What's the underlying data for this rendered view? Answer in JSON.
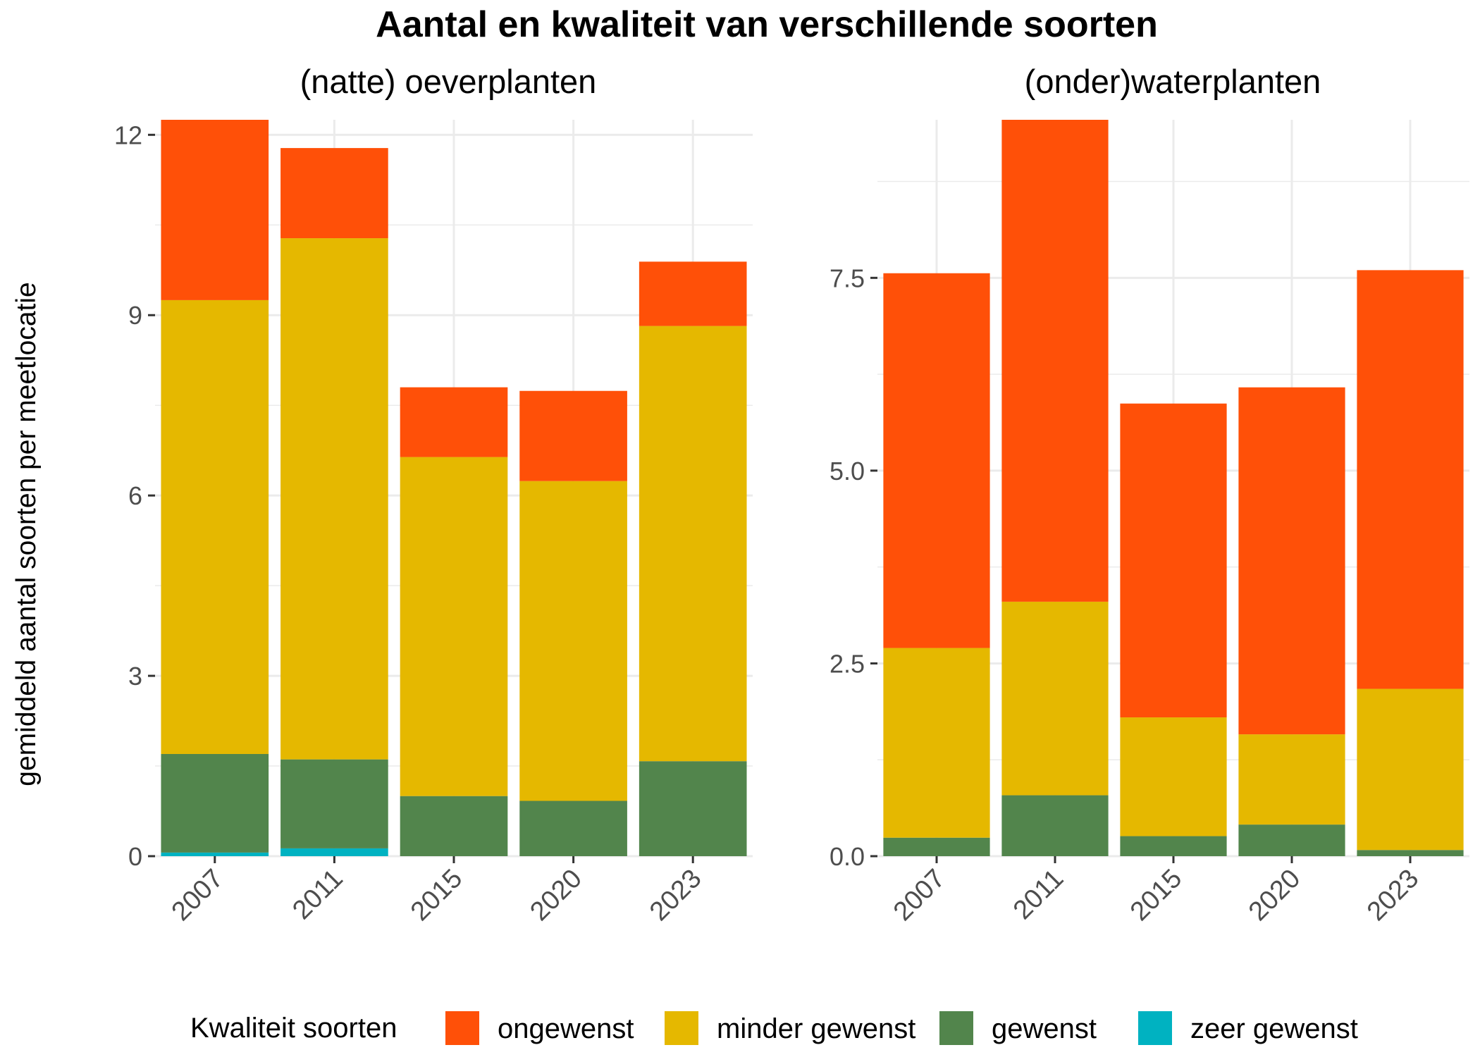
{
  "title": "Aantal en kwaliteit van verschillende soorten",
  "ylabel": "gemiddeld aantal soorten per meetlocatie",
  "legend": {
    "title": "Kwaliteit soorten",
    "placement": "bottom"
  },
  "colors": {
    "ongewenst": "#FF5008",
    "minder gewenst": "#E5B800",
    "gewenst": "#52854C",
    "zeer gewenst": "#00B2C1",
    "grid": "#EBEBEB"
  },
  "chart_data": [
    {
      "type": "bar",
      "stacked": true,
      "title": "(natte) oeverplanten",
      "categories": [
        "2007",
        "2011",
        "2015",
        "2020",
        "2023"
      ],
      "ylim": [
        0,
        12.25
      ],
      "yticks": [
        0,
        3,
        6,
        9,
        12
      ],
      "ytick_labels": [
        "0",
        "3",
        "6",
        "9",
        "12"
      ],
      "grid": true,
      "series": [
        {
          "name": "zeer gewenst",
          "values": [
            0.06,
            0.13,
            0.0,
            0.0,
            0.0
          ]
        },
        {
          "name": "gewenst",
          "values": [
            1.64,
            1.48,
            1.0,
            0.92,
            1.58
          ]
        },
        {
          "name": "minder gewenst",
          "values": [
            7.55,
            8.67,
            5.64,
            5.32,
            7.24
          ]
        },
        {
          "name": "ongewenst",
          "values": [
            3.0,
            1.5,
            1.16,
            1.5,
            1.07
          ]
        }
      ]
    },
    {
      "type": "bar",
      "stacked": true,
      "title": "(onder)waterplanten",
      "categories": [
        "2007",
        "2011",
        "2015",
        "2020",
        "2023"
      ],
      "ylim": [
        0,
        9.55
      ],
      "yticks": [
        0,
        2.5,
        5,
        7.5
      ],
      "ytick_labels": [
        "0.0",
        "2.5",
        "5.0",
        "7.5"
      ],
      "grid": true,
      "series": [
        {
          "name": "zeer gewenst",
          "values": [
            0.0,
            0.0,
            0.0,
            0.0,
            0.0
          ]
        },
        {
          "name": "gewenst",
          "values": [
            0.24,
            0.79,
            0.26,
            0.41,
            0.08
          ]
        },
        {
          "name": "minder gewenst",
          "values": [
            2.46,
            2.51,
            1.54,
            1.17,
            2.09
          ]
        },
        {
          "name": "ongewenst",
          "values": [
            4.86,
            6.25,
            4.07,
            4.5,
            5.43
          ]
        }
      ]
    }
  ]
}
